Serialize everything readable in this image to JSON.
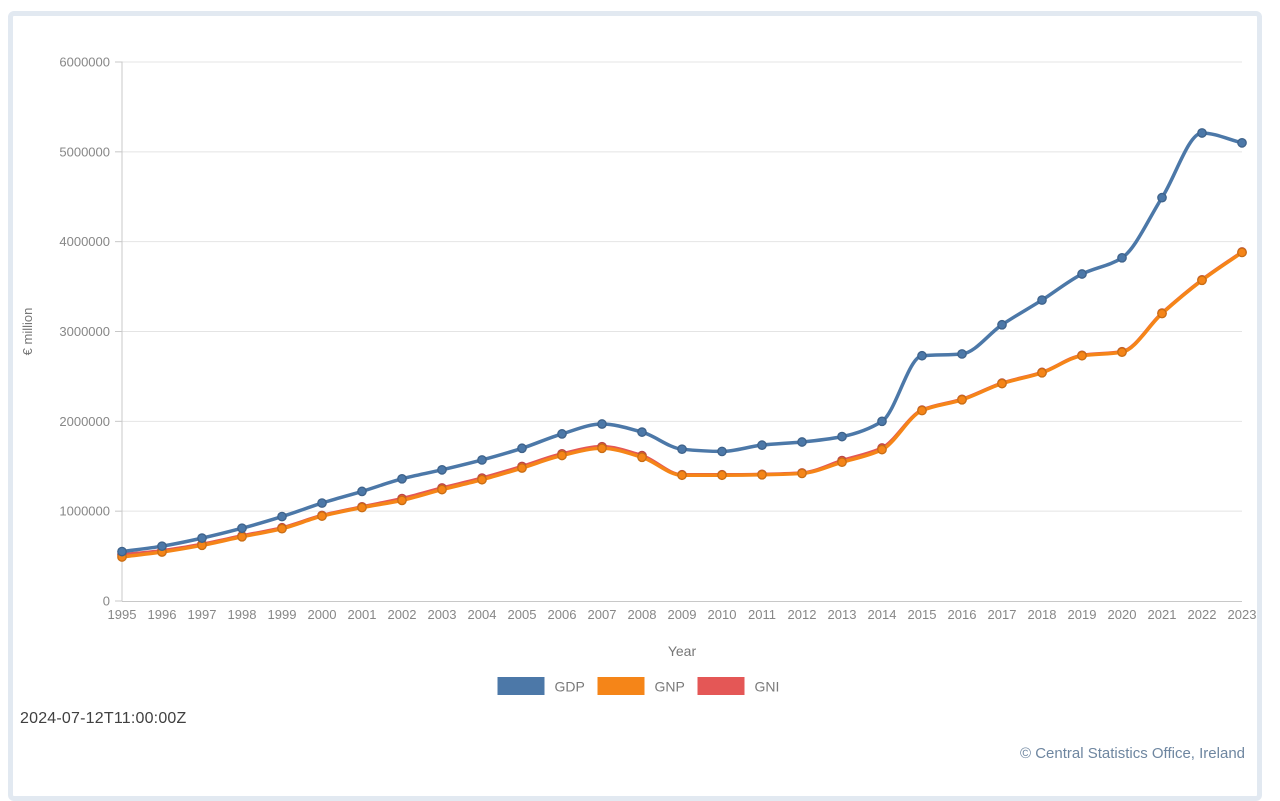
{
  "page": {
    "timestamp": "2024-07-12T11:00:00Z",
    "attribution": "© Central Statistics Office, Ireland",
    "card_border_color": "#e2e9f1"
  },
  "chart_data": {
    "type": "line",
    "interpolation": "monotone",
    "point_markers": true,
    "title": "",
    "xlabel": "Year",
    "ylabel": "€ million",
    "x": [
      1995,
      1996,
      1997,
      1998,
      1999,
      2000,
      2001,
      2002,
      2003,
      2004,
      2005,
      2006,
      2007,
      2008,
      2009,
      2010,
      2011,
      2012,
      2013,
      2014,
      2015,
      2016,
      2017,
      2018,
      2019,
      2020,
      2021,
      2022,
      2023
    ],
    "ylim": [
      0,
      6000000
    ],
    "ytick_step": 1000000,
    "grid": true,
    "legend_position": "bottom",
    "series": [
      {
        "name": "GDP",
        "color": "#4c78a8",
        "values": [
          550000,
          610000,
          700000,
          810000,
          940000,
          1090000,
          1220000,
          1360000,
          1460000,
          1570000,
          1700000,
          1860000,
          1970000,
          1880000,
          1690000,
          1665000,
          1735000,
          1770000,
          1830000,
          2000000,
          2730000,
          2750000,
          3075000,
          3350000,
          3640000,
          3820000,
          4490000,
          5210000,
          5100000
        ]
      },
      {
        "name": "GNP",
        "color": "#f58518",
        "values": [
          490000,
          545000,
          620000,
          715000,
          805000,
          945000,
          1040000,
          1120000,
          1240000,
          1350000,
          1480000,
          1620000,
          1700000,
          1600000,
          1400000,
          1400000,
          1405000,
          1420000,
          1545000,
          1685000,
          2120000,
          2240000,
          2420000,
          2540000,
          2730000,
          2770000,
          3200000,
          3570000,
          3880000
        ]
      },
      {
        "name": "GNI",
        "color": "#e45756",
        "values": [
          515000,
          560000,
          632000,
          725000,
          815000,
          952000,
          1048000,
          1140000,
          1258000,
          1368000,
          1498000,
          1638000,
          1718000,
          1618000,
          1405000,
          1405000,
          1410000,
          1425000,
          1563000,
          1703000,
          2125000,
          2245000,
          2425000,
          2545000,
          2735000,
          2775000,
          3205000,
          3575000,
          3885000
        ]
      }
    ],
    "draw_order": [
      "GNI",
      "GNP",
      "GDP"
    ]
  }
}
